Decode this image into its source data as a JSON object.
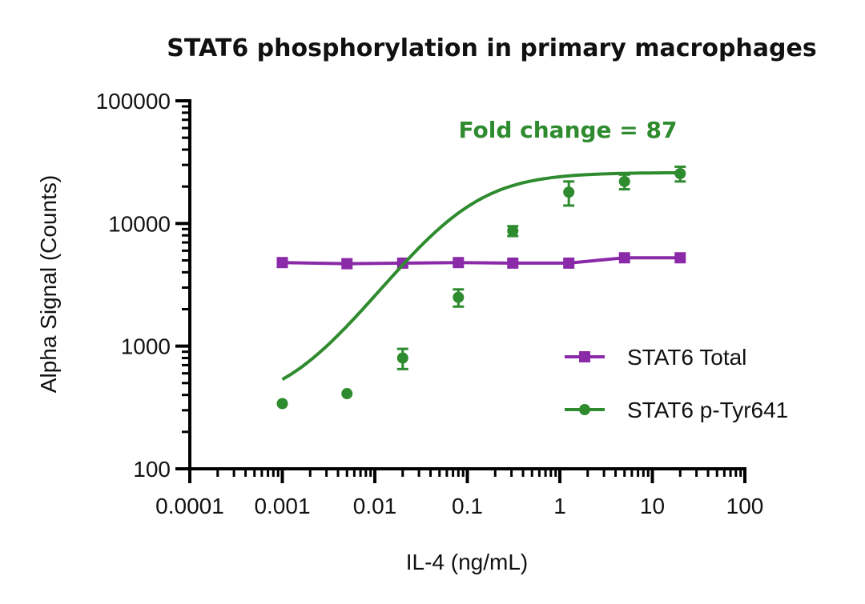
{
  "chart_data": {
    "type": "line",
    "title": "STAT6 phosphorylation in primary macrophages",
    "xlabel": "IL-4 (ng/mL)",
    "ylabel": "Alpha Signal (Counts)",
    "xscale": "log",
    "yscale": "log",
    "xlim": [
      0.0001,
      100
    ],
    "ylim": [
      100,
      100000
    ],
    "x_ticks": [
      "0.0001",
      "0.001",
      "0.01",
      "0.1",
      "1",
      "10",
      "100"
    ],
    "y_ticks": [
      "100",
      "1000",
      "10000",
      "100000"
    ],
    "annotation": "Fold change = 87",
    "legend_position": "center-right",
    "grid": false,
    "series": [
      {
        "name": "STAT6 Total",
        "color": "#8a2aa8",
        "marker": "square",
        "x": [
          0.001,
          0.005,
          0.02,
          0.08,
          0.31,
          1.25,
          5,
          20
        ],
        "y": [
          4800,
          4700,
          4750,
          4800,
          4750,
          4750,
          5250,
          5250
        ],
        "error": [
          0,
          0,
          0,
          0,
          0,
          0,
          0,
          0
        ],
        "fit": "flat"
      },
      {
        "name": "STAT6 p-Tyr641",
        "color": "#2e8b2e",
        "marker": "circle",
        "x": [
          0.001,
          0.005,
          0.02,
          0.08,
          0.31,
          1.25,
          5,
          20
        ],
        "y": [
          340,
          410,
          800,
          2500,
          8700,
          18000,
          22000,
          25500
        ],
        "error": [
          0,
          0,
          150,
          400,
          800,
          4000,
          3000,
          3500
        ],
        "fit": "sigmoid"
      }
    ]
  }
}
